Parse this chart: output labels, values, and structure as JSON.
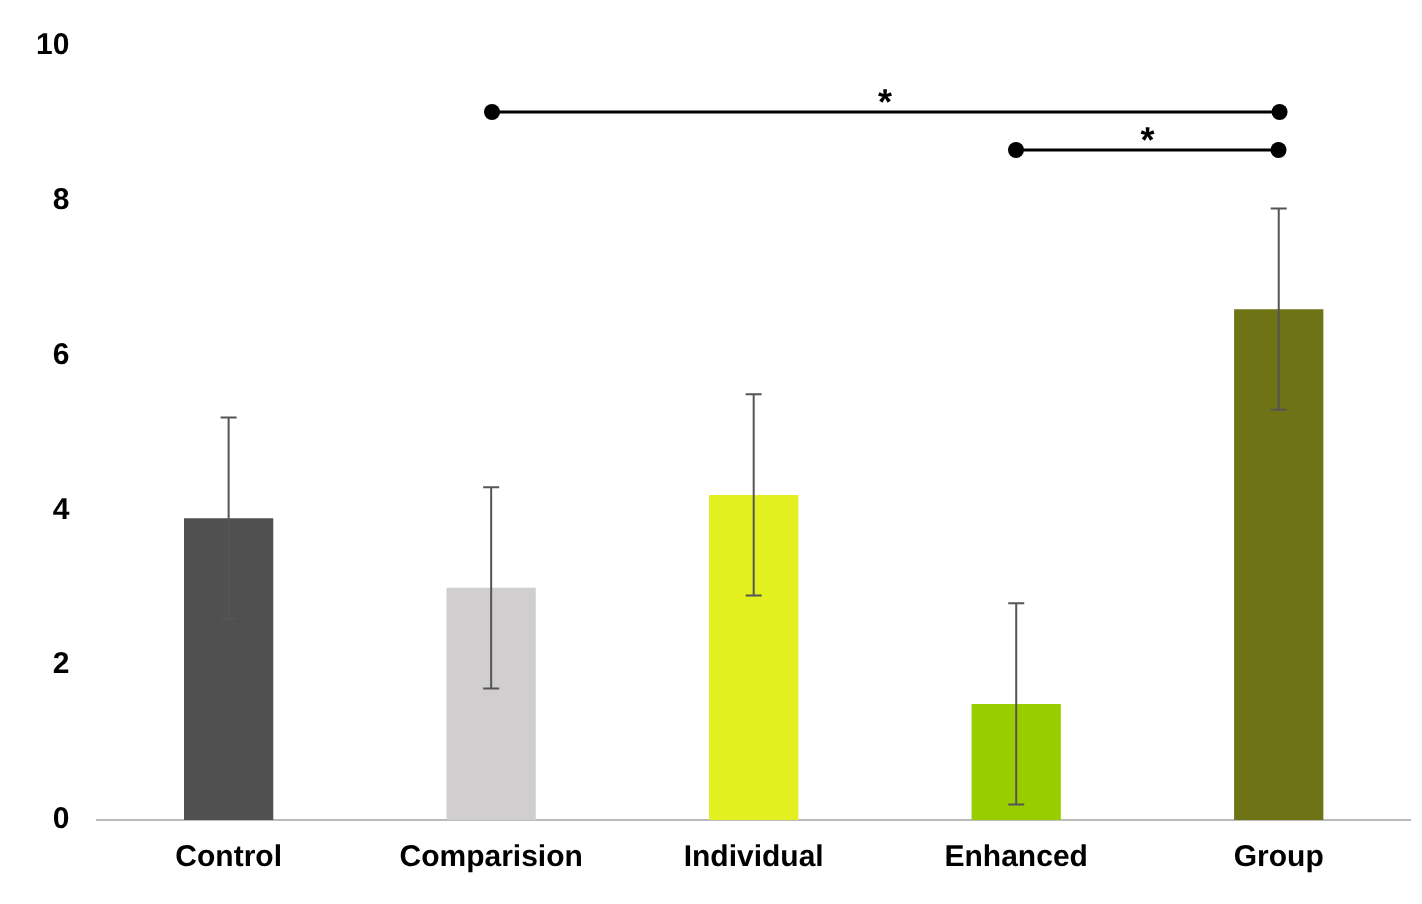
{
  "chart_data": {
    "type": "bar",
    "categories": [
      "Control",
      "Comparision",
      "Individual",
      "Enhanced",
      "Group"
    ],
    "values": [
      3.9,
      3.0,
      4.2,
      1.5,
      6.6
    ],
    "colors": [
      "#505050",
      "#d0cece",
      "#e2f01f",
      "#9acd00",
      "#6e7416"
    ],
    "errors": [
      1.3,
      1.3,
      1.3,
      1.3,
      1.3
    ],
    "ylim": [
      0,
      10
    ],
    "yticks": [
      0,
      2,
      4,
      6,
      8,
      10
    ],
    "grid": false,
    "legend": false,
    "annotations": [
      "*",
      "*"
    ]
  }
}
